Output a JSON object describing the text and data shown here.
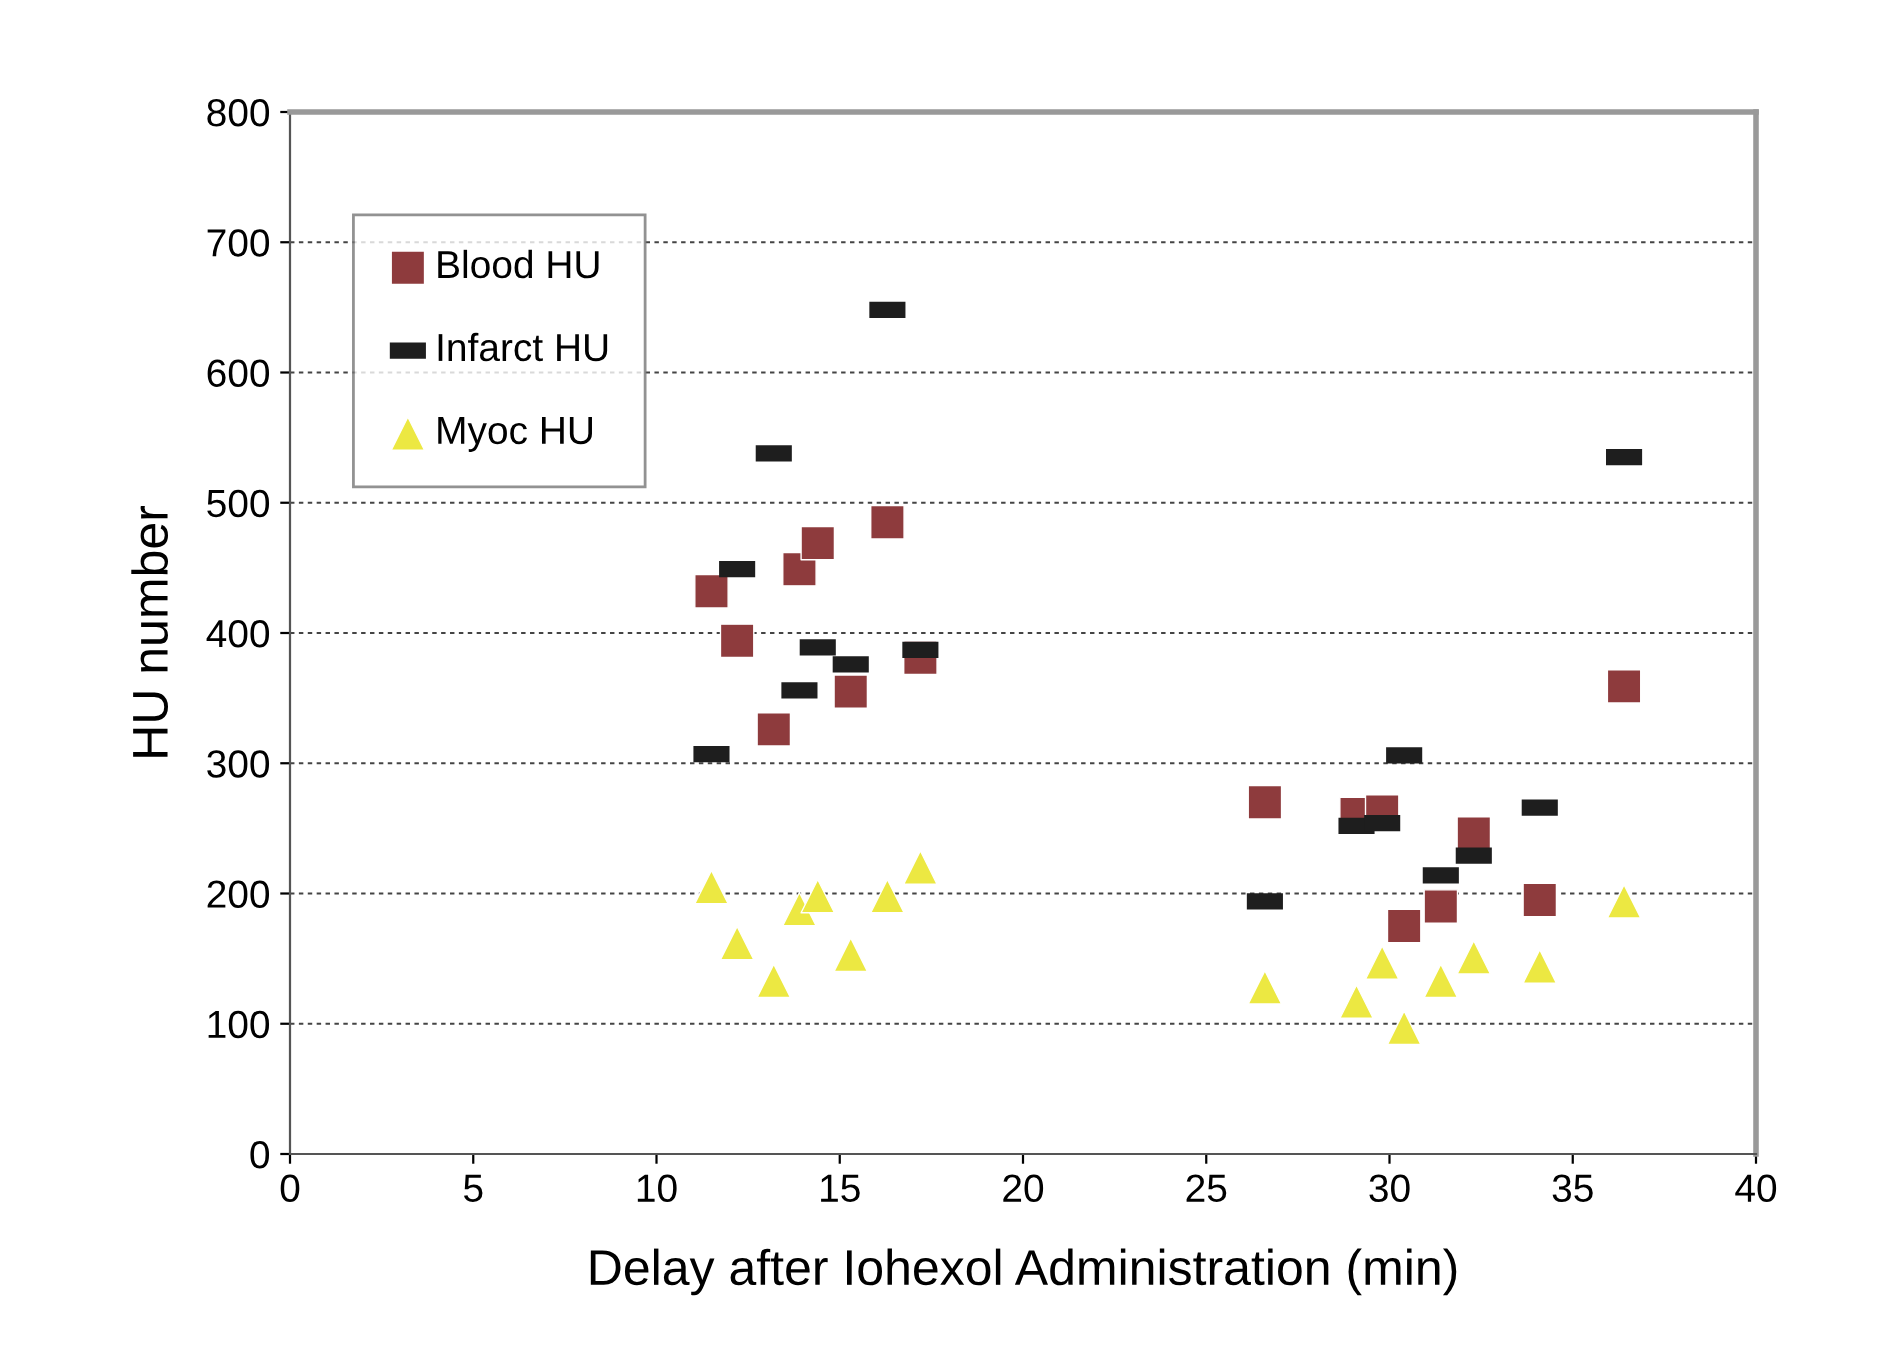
{
  "chart_data": {
    "type": "scatter",
    "xlabel": "Delay after Iohexol Administration (min)",
    "ylabel": "HU number",
    "x": [
      11.5,
      12.2,
      13.2,
      13.9,
      14.4,
      15.3,
      16.3,
      17.2,
      26.6,
      29.1,
      29.8,
      30.4,
      31.4,
      32.3,
      34.1,
      36.4
    ],
    "series": [
      {
        "name": "Blood HU",
        "color": "#8e3b3d",
        "marker": "square",
        "values": [
          432,
          394,
          326,
          449,
          469,
          355,
          485,
          381,
          270,
          261,
          263,
          175,
          190,
          246,
          195,
          359
        ]
      },
      {
        "name": "Infarct HU",
        "color": "#1e1e1e",
        "values": [
          307,
          449,
          538,
          356,
          389,
          376,
          648,
          387,
          194,
          252,
          254,
          306,
          214,
          229,
          266,
          535
        ]
      },
      {
        "name": "Myoc HU",
        "color": "#ece842",
        "marker": "triangle",
        "values": [
          205,
          162,
          133,
          188,
          198,
          153,
          198,
          220,
          128,
          117,
          147,
          97,
          133,
          151,
          144,
          194
        ]
      }
    ],
    "xlim": [
      0,
      40
    ],
    "xticks": [
      0,
      5,
      10,
      15,
      20,
      25,
      30,
      35,
      40
    ],
    "ylim": [
      0,
      800
    ],
    "yticks": [
      0,
      100,
      200,
      300,
      400,
      500,
      600,
      700,
      800
    ],
    "grid": "y",
    "legend": "top left"
  }
}
